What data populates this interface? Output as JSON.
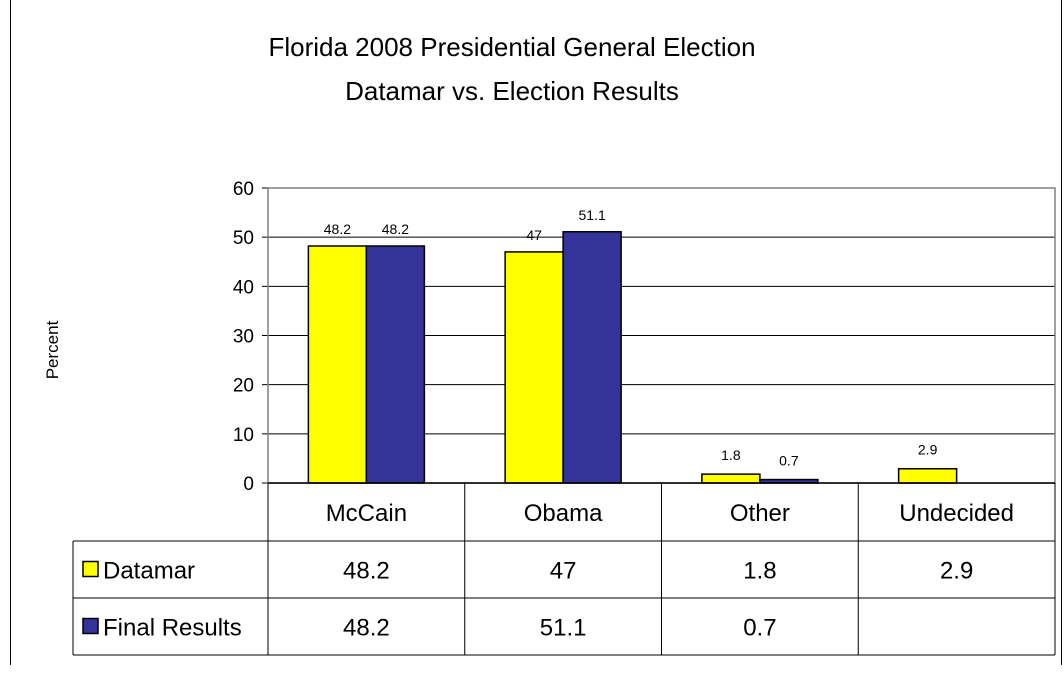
{
  "chart_data": {
    "type": "bar",
    "title": "Florida 2008 Presidential General Election",
    "subtitle": "Datamar vs. Election Results",
    "ylabel": "Percent",
    "xlabel": "",
    "ylim": [
      0,
      60
    ],
    "yticks": [
      0,
      10,
      20,
      30,
      40,
      50,
      60
    ],
    "categories": [
      "McCain",
      "Obama",
      "Other",
      "Undecided"
    ],
    "series": [
      {
        "name": "Datamar",
        "color": "#FFFF00",
        "values": [
          48.2,
          47,
          1.8,
          2.9
        ],
        "labels": [
          "48.2",
          "47",
          "1.8",
          "2.9"
        ],
        "table": [
          "48.2",
          "47",
          "1.8",
          "2.9"
        ]
      },
      {
        "name": "Final Results",
        "color": "#333399",
        "values": [
          48.2,
          51.1,
          0.7,
          null
        ],
        "labels": [
          "48.2",
          "51.1",
          "0.7",
          ""
        ],
        "table": [
          "48.2",
          "51.1",
          "0.7",
          ""
        ]
      }
    ],
    "grid": true,
    "legend": "data-table"
  }
}
